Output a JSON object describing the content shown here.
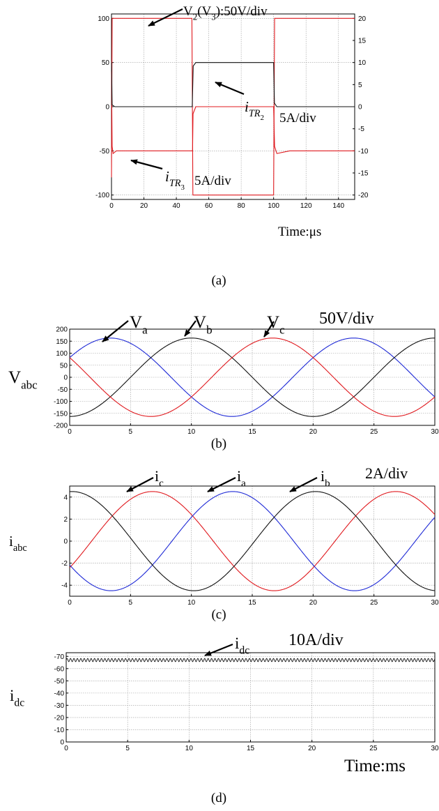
{
  "colors": {
    "red": "#e0191e",
    "blue": "#1f2ad6",
    "black": "#111111",
    "grid": "#9a9a9a"
  },
  "chart_data": [
    {
      "id": "a",
      "type": "line",
      "caption": "(a)",
      "xlabel": "Time:μs",
      "xlim": [
        0,
        150
      ],
      "ylim": [
        -105,
        105
      ],
      "y2lim": [
        -21,
        21
      ],
      "xticks": [
        0,
        20,
        40,
        60,
        80,
        100,
        120,
        140
      ],
      "yticks": [
        -100,
        -50,
        0,
        50,
        100
      ],
      "y2ticks": [
        -20,
        -15,
        -10,
        -5,
        0,
        5,
        10,
        15,
        20
      ],
      "grid": true,
      "series": [
        {
          "color": "red",
          "x": [
            0,
            0.4,
            1,
            49.6,
            50.2,
            100,
            100.6,
            150
          ],
          "y": [
            -80,
            100,
            100,
            100,
            -100,
            -100,
            100,
            100
          ]
        },
        {
          "color": "red",
          "x": [
            0,
            0.4,
            1,
            3,
            10,
            50,
            50.3,
            52,
            100,
            100.6,
            102,
            110,
            150
          ],
          "y": [
            40,
            -45,
            -53,
            -50,
            -50,
            -50,
            -8,
            0,
            0,
            -45,
            -53,
            -50,
            -50
          ]
        },
        {
          "color": "black",
          "x": [
            0,
            0.4,
            2,
            49.8,
            50.4,
            52,
            100,
            100.5,
            102,
            150
          ],
          "y": [
            50,
            2,
            0,
            0,
            46,
            50,
            50,
            4,
            0,
            0
          ]
        }
      ],
      "annotations": [
        {
          "parts": [
            {
              "t": "V"
            },
            {
              "t": "2",
              "sub": true
            },
            {
              "t": "(V"
            },
            {
              "t": "3",
              "sub": true
            },
            {
              "t": "):50V/div"
            }
          ]
        },
        {
          "parts": [
            {
              "t": "i",
              "italic": true
            },
            {
              "t": "TR",
              "italic": true,
              "sub": true
            },
            {
              "t": "2",
              "subsub": true
            }
          ]
        },
        {
          "parts": [
            {
              "t": "5A/div"
            }
          ]
        },
        {
          "parts": [
            {
              "t": "i",
              "italic": true
            },
            {
              "t": "TR",
              "italic": true,
              "sub": true
            },
            {
              "t": "3",
              "subsub": true
            }
          ]
        },
        {
          "parts": [
            {
              "t": "5A/div"
            }
          ]
        }
      ]
    },
    {
      "id": "b",
      "type": "line",
      "caption": "(b)",
      "ylabel_parts": [
        {
          "t": "V"
        },
        {
          "t": "abc",
          "sub": true
        }
      ],
      "xlim": [
        0,
        30
      ],
      "ylim": [
        -200,
        200
      ],
      "xticks": [
        0,
        5,
        10,
        15,
        20,
        25,
        30
      ],
      "yticks": [
        -200,
        -150,
        -100,
        -50,
        0,
        50,
        100,
        150,
        200
      ],
      "grid": true,
      "waves": [
        {
          "color": "blue",
          "amp": 163,
          "period_ms": 20,
          "peak_ms": 3.33
        },
        {
          "color": "black",
          "amp": 163,
          "period_ms": 20,
          "peak_ms": 10
        },
        {
          "color": "red",
          "amp": 163,
          "period_ms": 20,
          "peak_ms": 16.67
        }
      ],
      "annotations": [
        {
          "parts": [
            {
              "t": "V"
            },
            {
              "t": "a",
              "sub": true
            }
          ]
        },
        {
          "parts": [
            {
              "t": "V"
            },
            {
              "t": "b",
              "sub": true
            }
          ]
        },
        {
          "parts": [
            {
              "t": "V"
            },
            {
              "t": "c",
              "sub": true
            }
          ]
        },
        {
          "parts": [
            {
              "t": "50V/div"
            }
          ]
        }
      ]
    },
    {
      "id": "c",
      "type": "line",
      "caption": "(c)",
      "ylabel_parts": [
        {
          "t": "i"
        },
        {
          "t": "abc",
          "sub": true
        }
      ],
      "xlim": [
        0,
        30
      ],
      "ylim": [
        -5,
        5
      ],
      "xticks": [
        0,
        5,
        10,
        15,
        20,
        25,
        30
      ],
      "yticks": [
        -4,
        -2,
        0,
        2,
        4
      ],
      "grid": true,
      "waves": [
        {
          "color": "red",
          "amp": 4.5,
          "period_ms": 20,
          "peak_ms": 6.8
        },
        {
          "color": "blue",
          "amp": 4.5,
          "period_ms": 20,
          "peak_ms": 13.4
        },
        {
          "color": "black",
          "amp": 4.5,
          "period_ms": 20,
          "peak_ms": 0.2
        }
      ],
      "annotations": [
        {
          "parts": [
            {
              "t": "i"
            },
            {
              "t": "c",
              "sub": true
            }
          ]
        },
        {
          "parts": [
            {
              "t": "i"
            },
            {
              "t": "a",
              "sub": true
            }
          ]
        },
        {
          "parts": [
            {
              "t": "i"
            },
            {
              "t": "b",
              "sub": true
            }
          ]
        },
        {
          "parts": [
            {
              "t": "2A/div"
            }
          ]
        }
      ]
    },
    {
      "id": "d",
      "type": "line",
      "caption": "(d)",
      "xlabel": "Time:ms",
      "ylabel_parts": [
        {
          "t": "i"
        },
        {
          "t": "dc",
          "sub": true
        }
      ],
      "xlim": [
        0,
        30
      ],
      "ylim": [
        0,
        73
      ],
      "xticks": [
        0,
        5,
        10,
        15,
        20,
        25,
        30
      ],
      "yticks": [
        0,
        10,
        20,
        30,
        40,
        50,
        60,
        70
      ],
      "ytick_labels": [
        "0",
        "-10",
        "-20",
        "-30",
        "-40",
        "-50",
        "-60",
        "-70"
      ],
      "grid": true,
      "ripple": {
        "color": "black",
        "mean": 67,
        "amp": 1.3,
        "period_ms": 0.28
      },
      "annotations": [
        {
          "parts": [
            {
              "t": "i"
            },
            {
              "t": "dc",
              "sub": true
            }
          ]
        },
        {
          "parts": [
            {
              "t": "10A/div"
            }
          ]
        }
      ]
    }
  ]
}
